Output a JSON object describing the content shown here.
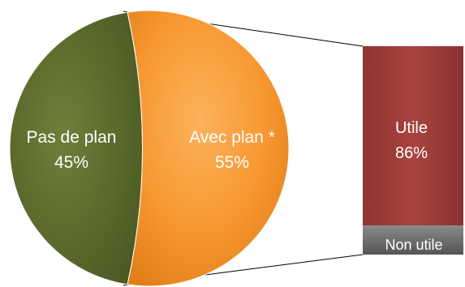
{
  "chart_data": {
    "type": "bar-of-pie",
    "pie": {
      "slices": [
        {
          "label": "Pas de plan",
          "value": 45,
          "value_label": "45%",
          "color": "#5b6b2e"
        },
        {
          "label": "Avec plan *",
          "value": 55,
          "value_label": "55%",
          "color": "#f7962f"
        }
      ]
    },
    "bar": {
      "parent_slice": "Avec plan *",
      "segments": [
        {
          "label": "Utile",
          "value": 86,
          "value_label": "86%",
          "color": "#9e3c38"
        },
        {
          "label": "Non utile",
          "value": 14,
          "value_label": "",
          "color": "#6e6e6e"
        }
      ]
    }
  }
}
